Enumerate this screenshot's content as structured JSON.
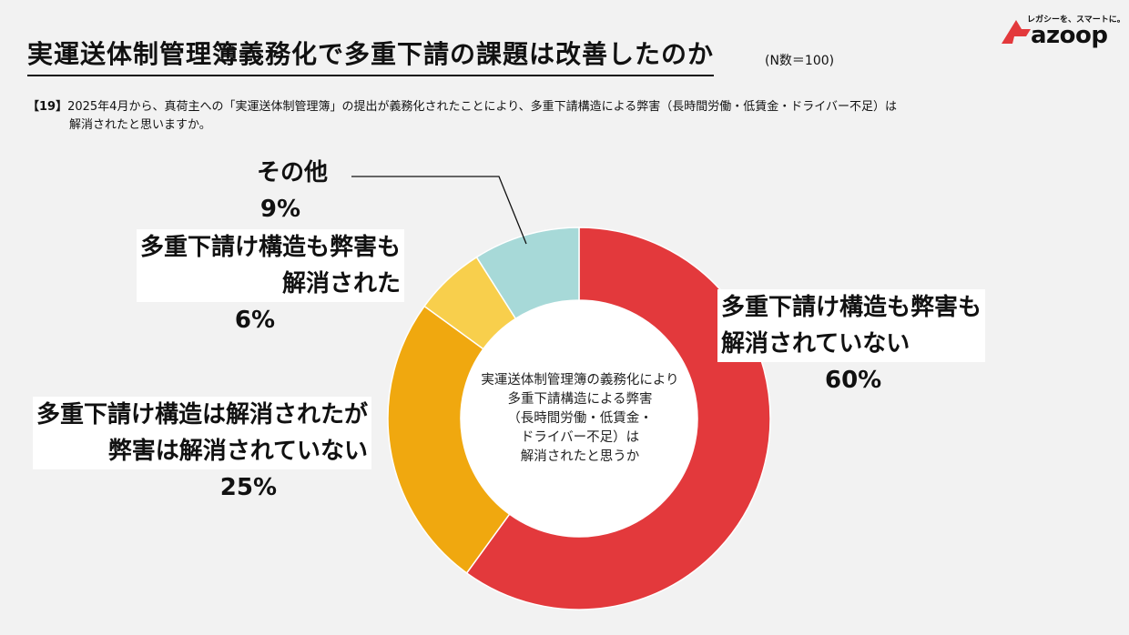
{
  "header": {
    "title": "実運送体制管理簿義務化で多重下請の課題は改善したのか",
    "n_note": "(N数＝100)"
  },
  "logo": {
    "tagline": "レガシーを、スマートに。",
    "brand": "azoop"
  },
  "question": {
    "number": "【19】",
    "text_line1": "2025年4月から、真荷主への「実運送体制管理簿」の提出が義務化されたことにより、多重下請構造による弊害（長時間労働・低賃金・ドライバー不足）は",
    "text_line2": "解消されたと思いますか。"
  },
  "center_text": "実運送体制管理簿の義務化により多重下請構造による弊害（長時間労働・低賃金・ドライバー不足）は解消されたと思うか",
  "center_lines": [
    "実運送体制管理簿の義務化により",
    "多重下請構造による弊害",
    "（長時間労働・低賃金・",
    "ドライバー不足）は",
    "解消されたと思うか"
  ],
  "chart_data": {
    "type": "pie",
    "donut": true,
    "unit": "%",
    "categories": [
      "多重下請け構造も弊害も解消されていない",
      "多重下請け構造は解消されたが弊害は解消されていない",
      "多重下請け構造も弊害も解消された",
      "その他"
    ],
    "values": [
      60,
      25,
      6,
      9
    ],
    "colors": [
      "#e3393c",
      "#f0a80f",
      "#f8cf4c",
      "#a7d9d8"
    ],
    "labels": [
      {
        "lines": [
          "多重下請け構造も弊害も",
          "解消されていない"
        ],
        "pct": "60%"
      },
      {
        "lines": [
          "多重下請け構造は解消されたが",
          "弊害は解消されていない"
        ],
        "pct": "25%"
      },
      {
        "lines": [
          "多重下請け構造も弊害も",
          "解消された"
        ],
        "pct": "6%"
      },
      {
        "lines": [
          "その他"
        ],
        "pct": "9%"
      }
    ]
  }
}
